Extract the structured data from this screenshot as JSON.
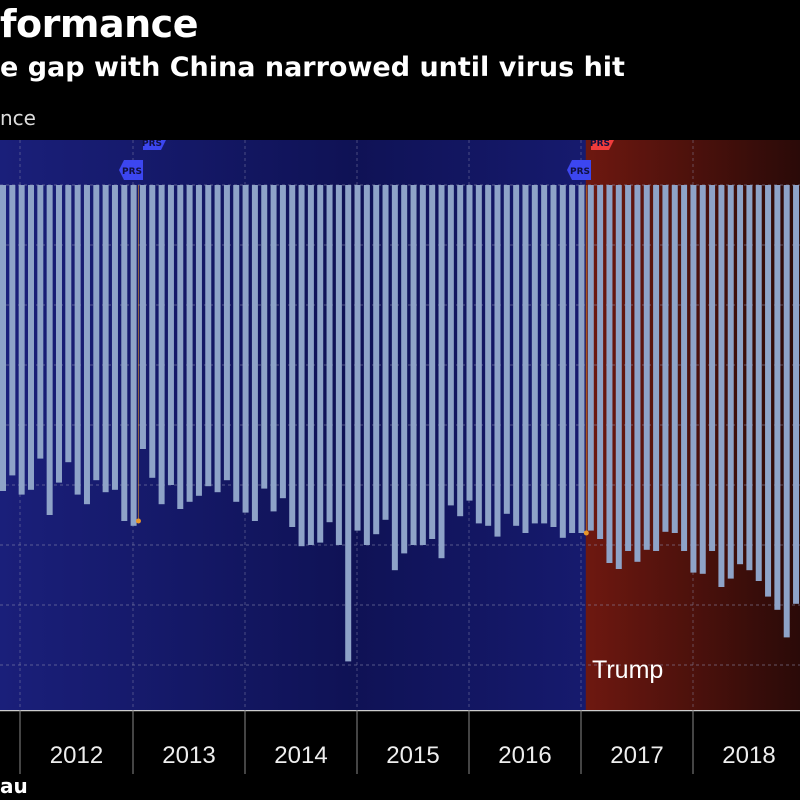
{
  "header": {
    "title": "formance",
    "subtitle": "e gap with China narrowed until virus hit",
    "unit_label": "nce"
  },
  "source": "au",
  "colors": {
    "background": "#000000",
    "obama_band": "#161a6e",
    "trump_band": "#6e1810",
    "bar": "#8ea3c8",
    "grid": "#8f8fb0",
    "prs_blue": "#3c46f0",
    "prs_red": "#f03c3c",
    "marker": "#e8962a"
  },
  "chart_data": {
    "type": "bar",
    "title": "formance",
    "subtitle": "e gap with China narrowed until virus hit",
    "ylabel": "nce",
    "xlabel": "",
    "orientation": "vertical, bars hang below zero",
    "ylim": [
      -43,
      0
    ],
    "grid": true,
    "gridline_step": 5,
    "x_tick_labels": [
      "2012",
      "2013",
      "2014",
      "2015",
      "2016",
      "2017",
      "2018"
    ],
    "regions": [
      {
        "label": "",
        "start_index": 0,
        "end_index": 62,
        "color": "#161a6e"
      },
      {
        "label": "Trump",
        "start_index": 63,
        "end_index": 85,
        "color": "#6e1810"
      }
    ],
    "annotations": [
      {
        "text": "PRS",
        "type": "blue",
        "index": 14
      },
      {
        "text": "PRS",
        "type": "blue",
        "index": 15
      },
      {
        "text": "PRS",
        "type": "blue",
        "index": 62
      },
      {
        "text": "PRS",
        "type": "red",
        "index": 63
      }
    ],
    "markers": [
      {
        "index": 15,
        "value": -28
      },
      {
        "index": 63,
        "value": -29
      }
    ],
    "values": [
      -25.5,
      -24.2,
      -25.8,
      -25.4,
      -22.8,
      -27.5,
      -24.8,
      -23.1,
      -25.8,
      -26.6,
      -24.6,
      -25.6,
      -25.4,
      -28.0,
      -28.4,
      -22.0,
      -24.4,
      -26.6,
      -25.0,
      -27.0,
      -26.4,
      -25.9,
      -25.1,
      -25.6,
      -24.6,
      -26.4,
      -27.3,
      -28.0,
      -25.3,
      -27.2,
      -26.1,
      -28.5,
      -30.1,
      -30.0,
      -29.8,
      -28.1,
      -30.0,
      -39.7,
      -28.8,
      -30.0,
      -29.1,
      -27.9,
      -32.1,
      -30.7,
      -30.0,
      -30.0,
      -29.5,
      -31.1,
      -26.7,
      -27.6,
      -26.3,
      -28.2,
      -28.4,
      -29.3,
      -27.4,
      -28.4,
      -29.0,
      -28.2,
      -28.2,
      -28.5,
      -29.4,
      -29.0,
      -29.0,
      -28.8,
      -29.5,
      -31.5,
      -32.0,
      -30.5,
      -31.4,
      -30.4,
      -30.5,
      -28.9,
      -29.0,
      -30.5,
      -32.3,
      -32.4,
      -30.5,
      -33.5,
      -32.8,
      -31.6,
      -32.1,
      -33.0,
      -34.3,
      -35.4,
      -37.7,
      -34.9
    ]
  }
}
